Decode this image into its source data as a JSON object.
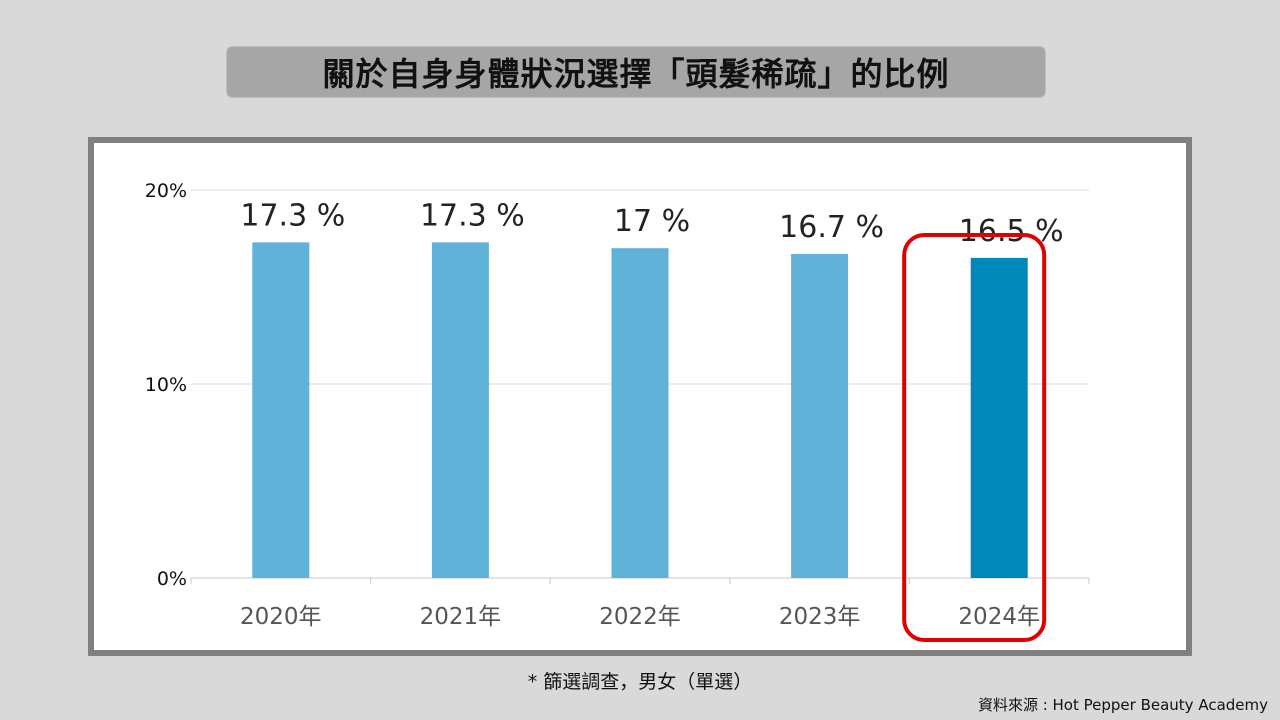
{
  "title": "關於自身身體狀況選擇「頭髮稀疏」的比例",
  "footnote": "* 篩選調查，男女（單選）",
  "source": "資料來源 : Hot Pepper Beauty Academy",
  "chart_data": {
    "type": "bar",
    "categories": [
      "2020年",
      "2021年",
      "2022年",
      "2023年",
      "2024年"
    ],
    "values": [
      17.3,
      17.3,
      17,
      16.7,
      16.5
    ],
    "data_labels": [
      "17.3 %",
      "17.3 %",
      "17 %",
      "16.7 %",
      "16.5 %"
    ],
    "y_ticks": [
      0,
      10,
      20
    ],
    "y_tick_labels": [
      "0%",
      "10%",
      "20%"
    ],
    "ylim": [
      0,
      20
    ],
    "grid": true,
    "highlight_index": 4,
    "colors": {
      "bar": "#61b2d8",
      "highlight_bar": "#0088ba",
      "highlight_outline": "#e00000"
    }
  }
}
